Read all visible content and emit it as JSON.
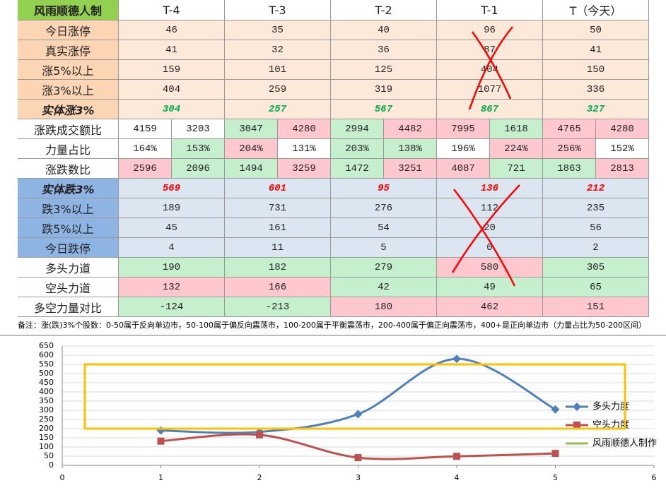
{
  "table": {
    "header": [
      "风雨顺德人制",
      "T-4",
      "T-3",
      "T-2",
      "T-1",
      "T（今天）"
    ],
    "rows": [
      {
        "label": "今日涨停",
        "cells": [
          46,
          35,
          40,
          96,
          50
        ]
      },
      {
        "label": "真实涨停",
        "cells": [
          41,
          32,
          36,
          87,
          41
        ]
      },
      {
        "label": "涨5%以上",
        "cells": [
          159,
          101,
          125,
          404,
          150
        ]
      },
      {
        "label": "涨3%以上",
        "cells": [
          404,
          259,
          319,
          1077,
          336
        ]
      },
      {
        "label": "实体涨3%",
        "cells": [
          304,
          257,
          567,
          867,
          327
        ]
      },
      {
        "label": "涨跌成交额比",
        "cells": [
          4159,
          3203,
          3047,
          4280,
          2994,
          4482,
          7995,
          1618,
          4765,
          4280
        ]
      },
      {
        "label": "力量占比",
        "cells": [
          "164%",
          "153%",
          "204%",
          "131%",
          "203%",
          "138%",
          "196%",
          "224%",
          "256%",
          "152%"
        ]
      },
      {
        "label": "涨跌数比",
        "cells": [
          2596,
          2096,
          1494,
          3259,
          1472,
          3251,
          4087,
          721,
          1863,
          2813
        ]
      },
      {
        "label": "实体跌3%",
        "cells": [
          569,
          601,
          95,
          136,
          212
        ]
      },
      {
        "label": "跌3%以上",
        "cells": [
          189,
          731,
          276,
          112,
          235
        ]
      },
      {
        "label": "跌5%以上",
        "cells": [
          45,
          161,
          54,
          20,
          56
        ]
      },
      {
        "label": "今日跌停",
        "cells": [
          4,
          11,
          5,
          0,
          2
        ]
      },
      {
        "label": "多头力道",
        "cells": [
          190,
          182,
          279,
          580,
          305
        ]
      },
      {
        "label": "空头力道",
        "cells": [
          132,
          166,
          42,
          49,
          65
        ]
      },
      {
        "label": "多空力量对比",
        "cells": [
          -124,
          -213,
          180,
          462,
          151
        ]
      }
    ],
    "note": "备注：涨(跌)3%个股数：0-50属于反向单边市，50-100属于偏反向震荡市，100-200属于平衡震荡市，200-400属于偏正向震荡市，400+是正向单边市（力量占比为50-200区间）"
  },
  "chart_data": {
    "type": "line",
    "x": [
      1,
      2,
      3,
      4,
      5
    ],
    "series": [
      {
        "name": "多头力度",
        "color": "#4f81bd",
        "values": [
          190,
          182,
          279,
          580,
          305
        ]
      },
      {
        "name": "空头力度",
        "color": "#c0504d",
        "values": [
          132,
          166,
          42,
          49,
          65
        ]
      },
      {
        "name": "风雨顺德人制作",
        "color": "#9bbb59",
        "values": [
          null,
          null,
          null,
          null,
          null
        ]
      }
    ],
    "xlim": [
      0,
      6
    ],
    "xticks": [
      0,
      1,
      2,
      3,
      4,
      5,
      6
    ],
    "ylim": [
      0,
      650
    ],
    "yticks": [
      0,
      50,
      100,
      150,
      200,
      250,
      300,
      350,
      400,
      450,
      500,
      550,
      600,
      650
    ],
    "grid": true,
    "smooth": true,
    "legend": "right"
  }
}
